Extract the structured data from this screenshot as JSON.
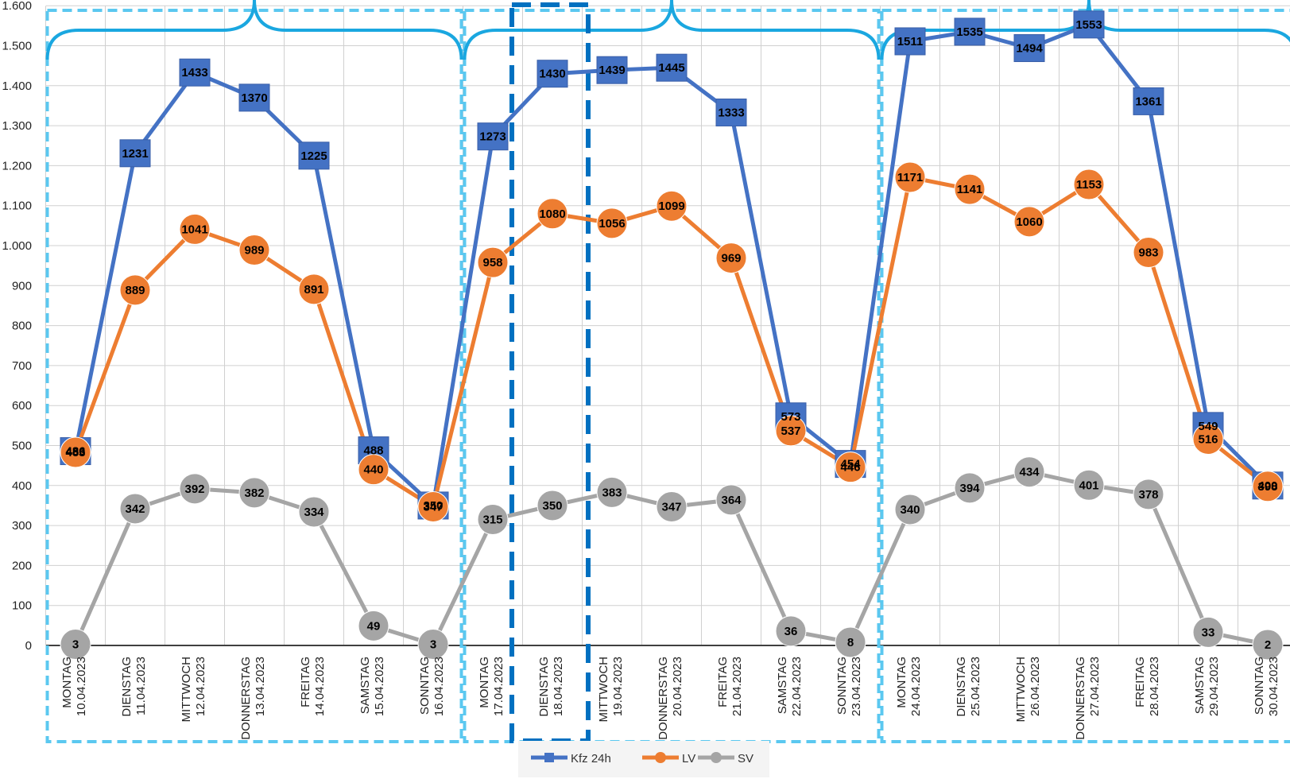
{
  "chart_data": {
    "type": "line",
    "title": "",
    "xlabel": "",
    "ylabel": "",
    "ylim": [
      0,
      1600
    ],
    "yticks": [
      0,
      100,
      200,
      300,
      400,
      500,
      600,
      700,
      800,
      900,
      1000,
      1100,
      1200,
      1300,
      1400,
      1500,
      1600
    ],
    "ytick_labels": [
      "0",
      "100",
      "200",
      "300",
      "400",
      "500",
      "600",
      "700",
      "800",
      "900",
      "1.000",
      "1.100",
      "1.200",
      "1.300",
      "1.400",
      "1.500",
      "1.600"
    ],
    "grid": true,
    "legend_position": "bottom",
    "categories": [
      {
        "day": "MONTAG",
        "date": "10.04.2023"
      },
      {
        "day": "DIENSTAG",
        "date": "11.04.2023"
      },
      {
        "day": "MITTWOCH",
        "date": "12.04.2023"
      },
      {
        "day": "DONNERSTAG",
        "date": "13.04.2023"
      },
      {
        "day": "FREITAG",
        "date": "14.04.2023"
      },
      {
        "day": "SAMSTAG",
        "date": "15.04.2023"
      },
      {
        "day": "SONNTAG",
        "date": "16.04.2023"
      },
      {
        "day": "MONTAG",
        "date": "17.04.2023"
      },
      {
        "day": "DIENSTAG",
        "date": "18.04.2023"
      },
      {
        "day": "MITTWOCH",
        "date": "19.04.2023"
      },
      {
        "day": "DONNERSTAG",
        "date": "20.04.2023"
      },
      {
        "day": "FREITAG",
        "date": "21.04.2023"
      },
      {
        "day": "SAMSTAG",
        "date": "22.04.2023"
      },
      {
        "day": "SONNTAG",
        "date": "23.04.2023"
      },
      {
        "day": "MONTAG",
        "date": "24.04.2023"
      },
      {
        "day": "DIENSTAG",
        "date": "25.04.2023"
      },
      {
        "day": "MITTWOCH",
        "date": "26.04.2023"
      },
      {
        "day": "DONNERSTAG",
        "date": "27.04.2023"
      },
      {
        "day": "FREITAG",
        "date": "28.04.2023"
      },
      {
        "day": "SAMSTAG",
        "date": "29.04.2023"
      },
      {
        "day": "SONNTAG",
        "date": "30.04.2023"
      }
    ],
    "series": [
      {
        "name": "Kfz 24h",
        "marker": "square",
        "color": "#4472C4",
        "values": [
          486,
          1231,
          1433,
          1370,
          1225,
          488,
          350,
          1273,
          1430,
          1439,
          1445,
          1333,
          573,
          454,
          1511,
          1535,
          1494,
          1553,
          1361,
          549,
          400
        ]
      },
      {
        "name": "LV",
        "marker": "circle",
        "color": "#ED7D31",
        "values": [
          483,
          889,
          1041,
          989,
          891,
          440,
          347,
          958,
          1080,
          1056,
          1099,
          969,
          537,
          446,
          1171,
          1141,
          1060,
          1153,
          983,
          516,
          398
        ]
      },
      {
        "name": "SV",
        "marker": "circle",
        "color": "#A5A5A5",
        "values": [
          3,
          342,
          392,
          382,
          334,
          49,
          3,
          315,
          350,
          383,
          347,
          364,
          36,
          8,
          340,
          394,
          434,
          401,
          378,
          33,
          2
        ]
      }
    ],
    "annotations": {
      "week_groups": 3,
      "week_box_color": "#5BC8F0",
      "brace_color": "#1AA7E0",
      "highlight_color": "#0070C0",
      "highlight_category_index": 8
    }
  }
}
